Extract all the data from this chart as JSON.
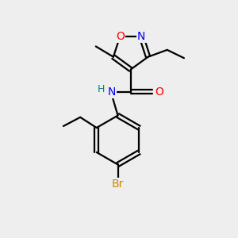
{
  "background_color": "#eeeeee",
  "bond_color": "#000000",
  "atom_colors": {
    "O": "#ff0000",
    "N": "#0000ff",
    "Br": "#cc8800",
    "NH": "#008080",
    "H": "#008080",
    "C": "#000000"
  },
  "figsize": [
    3.0,
    3.0
  ],
  "dpi": 100
}
